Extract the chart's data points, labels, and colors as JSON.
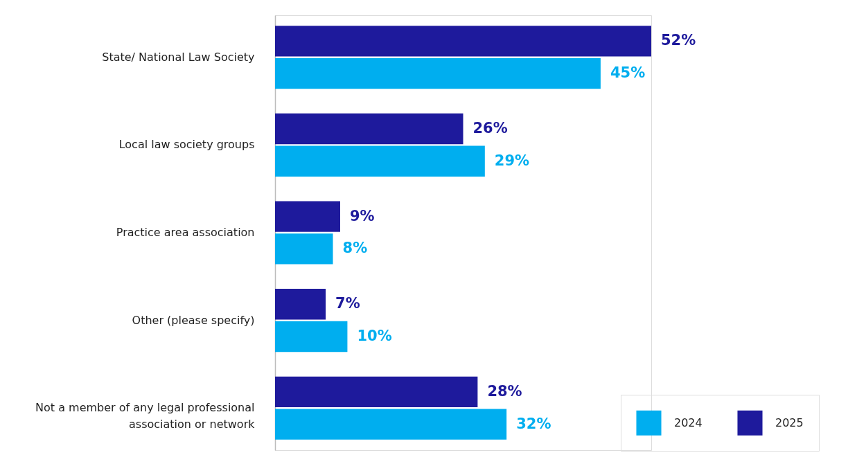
{
  "chart_data": {
    "type": "bar",
    "orientation": "horizontal",
    "categories": [
      "State/ National Law Society",
      "Local law society groups",
      "Practice area association",
      "Other (please specify)",
      "Not a member of any legal professional association or network"
    ],
    "series": [
      {
        "name": "2025",
        "color": "#1e1a9c",
        "values": [
          52,
          26,
          9,
          7,
          28
        ],
        "value_labels": [
          "52%",
          "26%",
          "9%",
          "7%",
          "28%"
        ]
      },
      {
        "name": "2024",
        "color": "#00aeef",
        "values": [
          45,
          29,
          8,
          10,
          32
        ],
        "value_labels": [
          "45%",
          "29%",
          "8%",
          "10%",
          "32%"
        ]
      }
    ],
    "legend": "bottom right",
    "grid": false,
    "tick_labels": "y"
  }
}
